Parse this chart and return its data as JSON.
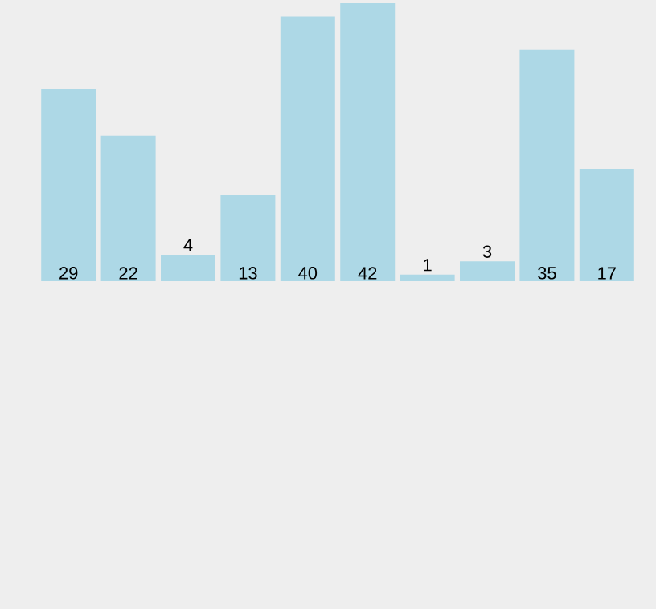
{
  "chart_data": {
    "type": "bar",
    "categories": [
      null,
      null,
      null,
      null,
      null,
      null,
      null,
      null,
      null,
      null
    ],
    "values": [
      29,
      22,
      4,
      13,
      40,
      42,
      1,
      3,
      35,
      17
    ],
    "color": "#add8e6",
    "ylim": [
      0,
      42
    ],
    "data_labels": true
  }
}
